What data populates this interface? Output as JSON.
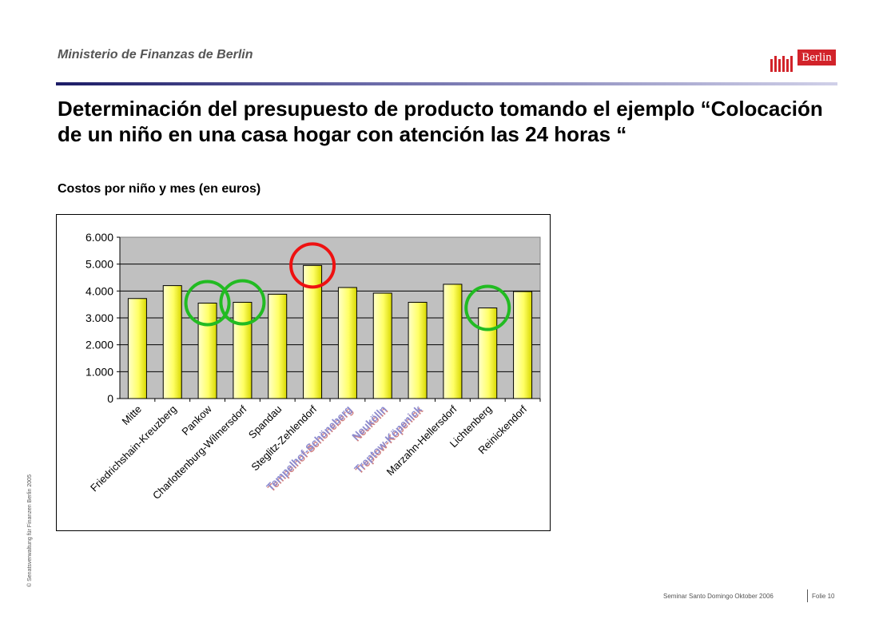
{
  "header": {
    "ministry": "Ministerio de Finanzas de Berlin",
    "logo_text": "Berlin"
  },
  "slide": {
    "title": "Determinación del presupuesto de producto tomando el ejemplo “Colocación de un niño en una casa hogar con atención las 24 horas “",
    "subtitle": "Costos por niño y mes (en euros)"
  },
  "chart_data": {
    "type": "bar",
    "categories": [
      "Mitte",
      "Friedrichshain-Kreuzberg",
      "Pankow",
      "Charlottenburg-Wilmersdorf",
      "Spandau",
      "Steglitz-Zehlendorf",
      "Tempelhof-Schöneberg",
      "Neukölln",
      "Treptow-Köpenick",
      "Marzahn-Hellersdorf",
      "Lichtenberg",
      "Reinickendorf"
    ],
    "values": [
      3720,
      4200,
      3550,
      3580,
      3880,
      4950,
      4130,
      3920,
      3580,
      4250,
      3370,
      3980
    ],
    "yticks": [
      "0",
      "1.000",
      "2.000",
      "3.000",
      "4.000",
      "5.000",
      "6.000"
    ],
    "ylim": [
      0,
      6000
    ],
    "grid": true,
    "bar_color": "#ffff66",
    "plot_bg": "#c0c0c0",
    "highlighted_labels": [
      6,
      7,
      8
    ],
    "highlight_label_colors": [
      "#8b8bd0",
      "#d08080"
    ],
    "circles": [
      {
        "bars": [
          2
        ],
        "color": "#22bb22"
      },
      {
        "bars": [
          3
        ],
        "color": "#22bb22"
      },
      {
        "bars": [
          5
        ],
        "color": "#ee1111"
      },
      {
        "bars": [
          10
        ],
        "color": "#22bb22"
      }
    ]
  },
  "footer": {
    "copyright": "© Senatsverwaltung für Finanzen Berlin 2005",
    "seminar": "Seminar Santo Domingo Oktober 2006",
    "page": "Folie 10"
  }
}
